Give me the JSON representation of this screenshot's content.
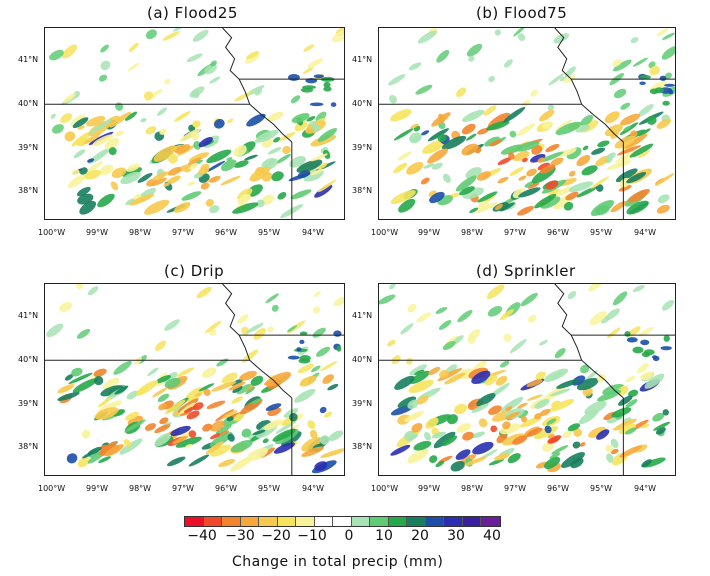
{
  "panels": [
    {
      "title": "(a) Flood25",
      "key": "a"
    },
    {
      "title": "(b) Flood75",
      "key": "b"
    },
    {
      "title": "(c) Drip",
      "key": "c"
    },
    {
      "title": "(d) Sprinkler",
      "key": "d"
    }
  ],
  "axes": {
    "lat_labels": [
      "41°N",
      "40°N",
      "39°N",
      "38°N"
    ],
    "lon_labels": [
      "100°W",
      "99°W",
      "98°W",
      "97°W",
      "96°W",
      "95°W",
      "94°W"
    ]
  },
  "colorbar": {
    "title": "Change in total precip (mm)",
    "tick_labels": [
      "−40",
      "−30",
      "−20",
      "−10",
      "0",
      "10",
      "20",
      "30",
      "40"
    ],
    "colors": [
      "#e8102a",
      "#f04a2a",
      "#f3842e",
      "#f6a83c",
      "#f7c94e",
      "#f6e45e",
      "#f8f39a",
      "#ffffff",
      "#ffffff",
      "#a7e3b4",
      "#5fcb74",
      "#27a94a",
      "#177e5e",
      "#1b4fa8",
      "#2a2fb0",
      "#3a1fa0",
      "#6a1f9a"
    ]
  }
}
